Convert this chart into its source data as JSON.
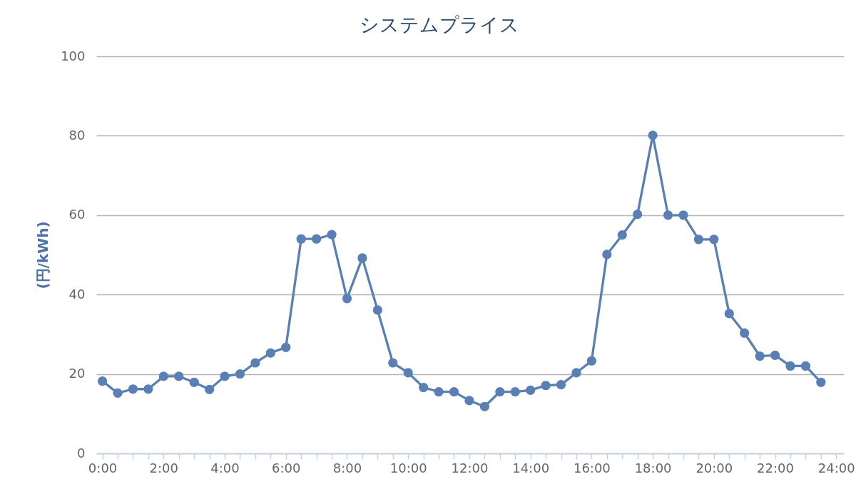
{
  "chart_data": {
    "type": "line",
    "title": "システムプライス",
    "ylabel": "(円/kWh)",
    "x": [
      0,
      0.5,
      1,
      1.5,
      2,
      2.5,
      3,
      3.5,
      4,
      4.5,
      5,
      5.5,
      6,
      6.5,
      7,
      7.5,
      8,
      8.5,
      9,
      9.5,
      10,
      10.5,
      11,
      11.5,
      12,
      12.5,
      13,
      13.5,
      14,
      14.5,
      15,
      15.5,
      16,
      16.5,
      17,
      17.5,
      18,
      18.5,
      19,
      19.5,
      20,
      20.5,
      21,
      21.5,
      22,
      22.5,
      23,
      23.5
    ],
    "series": [
      {
        "color": "#5a7fb4",
        "values": [
          18.2,
          15.2,
          16.2,
          16.2,
          19.4,
          19.4,
          17.9,
          16.1,
          19.4,
          20.0,
          22.8,
          25.3,
          26.7,
          54.0,
          54.0,
          55.1,
          39.0,
          49.2,
          36.1,
          22.8,
          20.3,
          16.6,
          15.5,
          15.5,
          13.3,
          11.8,
          15.5,
          15.5,
          15.9,
          17.1,
          17.3,
          20.3,
          23.3,
          50.1,
          55.0,
          60.2,
          80.1,
          60.0,
          60.0,
          53.9,
          53.9,
          35.2,
          30.3,
          24.5,
          24.7,
          22.0,
          22.0,
          17.9
        ]
      }
    ],
    "xlim": [
      -0.2,
      24.25
    ],
    "xticks": [
      {
        "value": 0,
        "label": "0:00"
      },
      {
        "value": 0.5,
        "label": null
      },
      {
        "value": 1,
        "label": null
      },
      {
        "value": 1.5,
        "label": null
      },
      {
        "value": 2,
        "label": "2:00"
      },
      {
        "value": 2.5,
        "label": null
      },
      {
        "value": 3,
        "label": null
      },
      {
        "value": 3.5,
        "label": null
      },
      {
        "value": 4,
        "label": "4:00"
      },
      {
        "value": 4.5,
        "label": null
      },
      {
        "value": 5,
        "label": null
      },
      {
        "value": 5.5,
        "label": null
      },
      {
        "value": 6,
        "label": "6:00"
      },
      {
        "value": 6.5,
        "label": null
      },
      {
        "value": 7,
        "label": null
      },
      {
        "value": 7.5,
        "label": null
      },
      {
        "value": 8,
        "label": "8:00"
      },
      {
        "value": 8.5,
        "label": null
      },
      {
        "value": 9,
        "label": null
      },
      {
        "value": 9.5,
        "label": null
      },
      {
        "value": 10,
        "label": "10:00"
      },
      {
        "value": 10.5,
        "label": null
      },
      {
        "value": 11,
        "label": null
      },
      {
        "value": 11.5,
        "label": null
      },
      {
        "value": 12,
        "label": "12:00"
      },
      {
        "value": 12.5,
        "label": null
      },
      {
        "value": 13,
        "label": null
      },
      {
        "value": 13.5,
        "label": null
      },
      {
        "value": 14,
        "label": "14:00"
      },
      {
        "value": 14.5,
        "label": null
      },
      {
        "value": 15,
        "label": null
      },
      {
        "value": 15.5,
        "label": null
      },
      {
        "value": 16,
        "label": "16:00"
      },
      {
        "value": 16.5,
        "label": null
      },
      {
        "value": 17,
        "label": null
      },
      {
        "value": 17.5,
        "label": null
      },
      {
        "value": 18,
        "label": "18:00"
      },
      {
        "value": 18.5,
        "label": null
      },
      {
        "value": 19,
        "label": null
      },
      {
        "value": 19.5,
        "label": null
      },
      {
        "value": 20,
        "label": "20:00"
      },
      {
        "value": 20.5,
        "label": null
      },
      {
        "value": 21,
        "label": null
      },
      {
        "value": 21.5,
        "label": null
      },
      {
        "value": 22,
        "label": "22:00"
      },
      {
        "value": 22.5,
        "label": null
      },
      {
        "value": 23,
        "label": null
      },
      {
        "value": 23.5,
        "label": null
      },
      {
        "value": 24,
        "label": "24:00"
      }
    ],
    "ylim": [
      0,
      100
    ],
    "yticks": [
      0,
      20,
      40,
      60,
      80,
      100
    ],
    "grid": "y",
    "marker": "circle",
    "line_style": "solid"
  }
}
